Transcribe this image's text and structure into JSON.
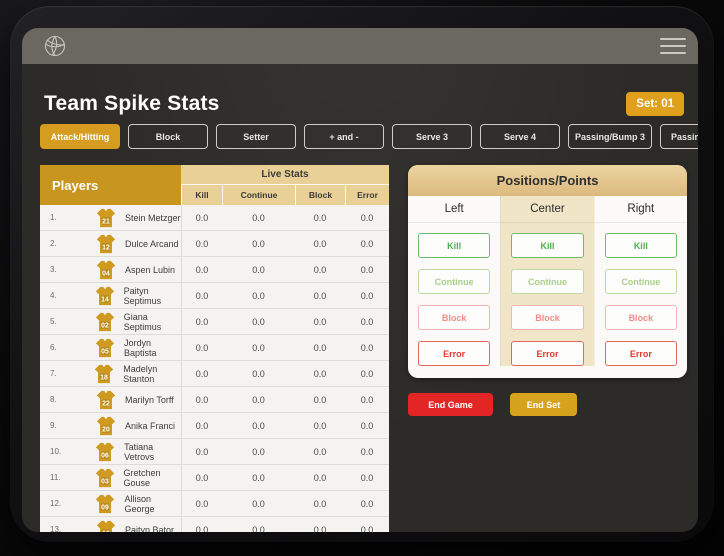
{
  "app": {
    "title": "Team Spike Stats",
    "set_badge": "Set: 01",
    "topbar_icons": {
      "logo": "volleyball-icon",
      "menu": "hamburger-icon"
    }
  },
  "tabs": [
    {
      "label": "Attack/Hitting",
      "active": true,
      "clipped": false
    },
    {
      "label": "Block",
      "active": false,
      "clipped": false
    },
    {
      "label": "Setter",
      "active": false,
      "clipped": false
    },
    {
      "label": "+ and -",
      "active": false,
      "clipped": false
    },
    {
      "label": "Serve 3",
      "active": false,
      "clipped": false
    },
    {
      "label": "Serve 4",
      "active": false,
      "clipped": false
    },
    {
      "label": "Passing/Bump 3",
      "active": false,
      "clipped": false
    },
    {
      "label": "Passing/",
      "active": false,
      "clipped": true
    }
  ],
  "players_table": {
    "players_header": "Players",
    "live_stats_header": "Live Stats",
    "stat_columns": [
      "Kill",
      "Continue",
      "Block",
      "Error"
    ],
    "rows": [
      {
        "rank": "1.",
        "jersey": "21",
        "name": "Stein Metzger",
        "stats": [
          "0.0",
          "0.0",
          "0.0",
          "0.0"
        ]
      },
      {
        "rank": "2.",
        "jersey": "12",
        "name": "Dulce Arcand",
        "stats": [
          "0.0",
          "0.0",
          "0.0",
          "0.0"
        ]
      },
      {
        "rank": "3.",
        "jersey": "04",
        "name": "Aspen Lubin",
        "stats": [
          "0.0",
          "0.0",
          "0.0",
          "0.0"
        ]
      },
      {
        "rank": "4.",
        "jersey": "14",
        "name": "Paityn Septimus",
        "stats": [
          "0.0",
          "0.0",
          "0.0",
          "0.0"
        ]
      },
      {
        "rank": "5.",
        "jersey": "02",
        "name": "Giana Septimus",
        "stats": [
          "0.0",
          "0.0",
          "0.0",
          "0.0"
        ]
      },
      {
        "rank": "6.",
        "jersey": "05",
        "name": "Jordyn Baptista",
        "stats": [
          "0.0",
          "0.0",
          "0.0",
          "0.0"
        ]
      },
      {
        "rank": "7.",
        "jersey": "18",
        "name": "Madelyn Stanton",
        "stats": [
          "0.0",
          "0.0",
          "0.0",
          "0.0"
        ]
      },
      {
        "rank": "8.",
        "jersey": "22",
        "name": "Marilyn Torff",
        "stats": [
          "0.0",
          "0.0",
          "0.0",
          "0.0"
        ]
      },
      {
        "rank": "9.",
        "jersey": "20",
        "name": "Anika Franci",
        "stats": [
          "0.0",
          "0.0",
          "0.0",
          "0.0"
        ]
      },
      {
        "rank": "10.",
        "jersey": "06",
        "name": "Tatiana Vetrovs",
        "stats": [
          "0.0",
          "0.0",
          "0.0",
          "0.0"
        ]
      },
      {
        "rank": "11.",
        "jersey": "03",
        "name": "Gretchen Gouse",
        "stats": [
          "0.0",
          "0.0",
          "0.0",
          "0.0"
        ]
      },
      {
        "rank": "12.",
        "jersey": "09",
        "name": "Allison George",
        "stats": [
          "0.0",
          "0.0",
          "0.0",
          "0.0"
        ]
      },
      {
        "rank": "13.",
        "jersey": "10",
        "name": "Paityn Bator",
        "stats": [
          "0.0",
          "0.0",
          "0.0",
          "0.0"
        ]
      }
    ]
  },
  "positions_panel": {
    "title": "Positions/Points",
    "columns": [
      "Left",
      "Center",
      "Right"
    ],
    "buttons": [
      {
        "label": "Kill",
        "text_color": "#4caf50",
        "border_color": "#6dbb6d"
      },
      {
        "label": "Continue",
        "text_color": "#a9cf8b",
        "border_color": "#bcd9a4"
      },
      {
        "label": "Block",
        "text_color": "#ef8d87",
        "border_color": "#f3b3ae"
      },
      {
        "label": "Error",
        "text_color": "#e23a2e",
        "border_color": "#e4675d"
      }
    ]
  },
  "actions": {
    "end_game": "End Game",
    "end_set": "End Set"
  },
  "colors": {
    "accent_gold": "#d59c1f",
    "players_header_gold": "#c8961e",
    "live_stats_tan": "#e8d096",
    "panel_header_tan": "#e2c185",
    "center_column_beige": "#f1e5c8",
    "end_game_red": "#e42525",
    "end_set_gold": "#d7a31f",
    "screen_charcoal": "#2d2b28",
    "topbar_gray": "#6b6761",
    "jersey_gold": "#cf9a1f"
  }
}
